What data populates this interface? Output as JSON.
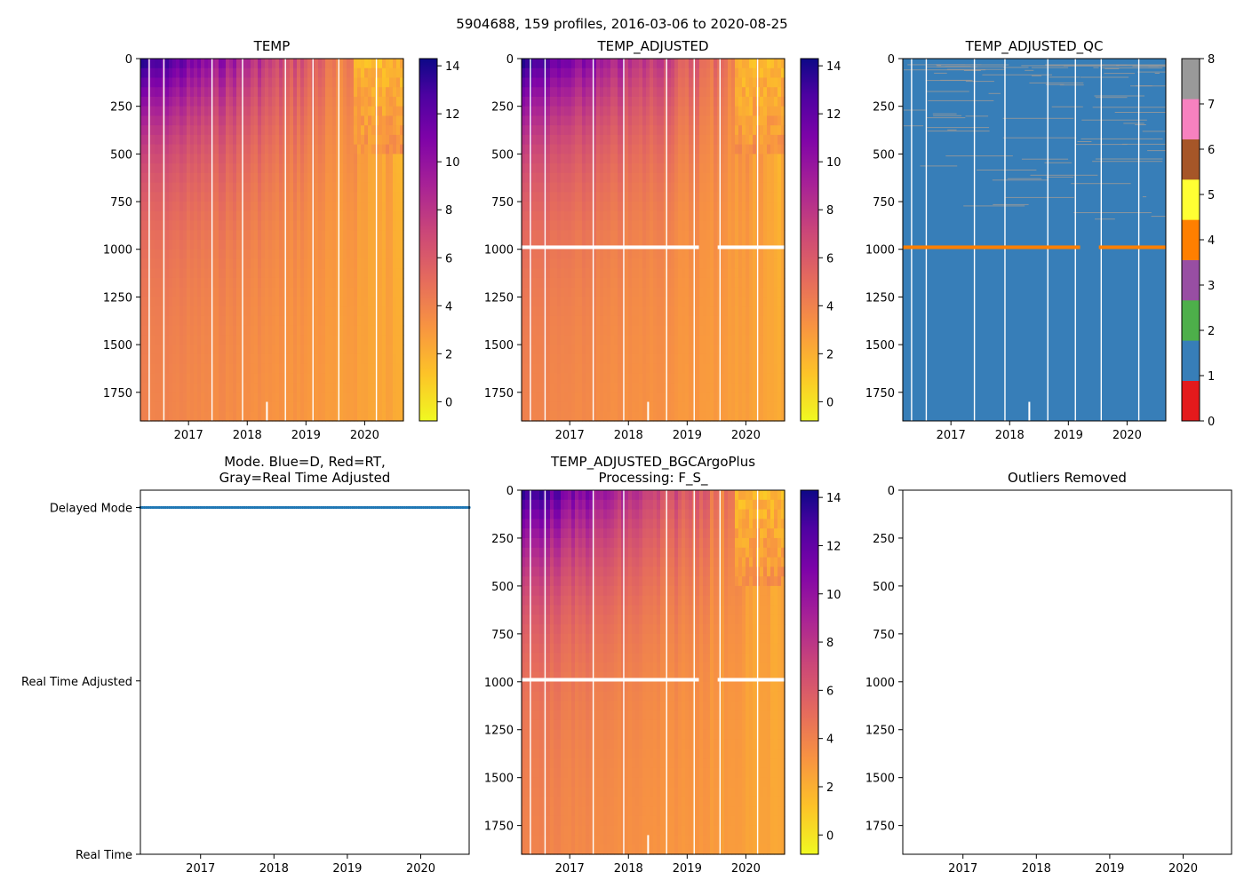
{
  "figure": {
    "suptitle": "5904688, 159 profiles, 2016-03-06 to 2020-08-25"
  },
  "chart_data": [
    {
      "id": "temp",
      "type": "heatmap",
      "title": "TEMP",
      "xlabel": "",
      "ylabel": "",
      "xlim": [
        2016.18,
        2020.66
      ],
      "ylim": [
        1900,
        0
      ],
      "xticks": [
        2017,
        2018,
        2019,
        2020
      ],
      "xtick_labels": [
        "2017",
        "2018",
        "2019",
        "2020"
      ],
      "yticks": [
        0,
        250,
        500,
        750,
        1000,
        1250,
        1500,
        1750
      ],
      "ytick_labels": [
        "0",
        "250",
        "500",
        "750",
        "1000",
        "1250",
        "1500",
        "1750"
      ],
      "colormap": "plasma_r",
      "colorbar": {
        "range": [
          -0.8,
          14.3
        ],
        "ticks": [
          0,
          2,
          4,
          6,
          8,
          10,
          12,
          14
        ],
        "tick_labels": [
          "0",
          "2",
          "4",
          "6",
          "8",
          "10",
          "12",
          "14"
        ]
      },
      "surface_temp_warm_start": 14,
      "surface_temp_end": 1.0,
      "deep_temp_start": 3.6,
      "deep_temp_end": 2.2,
      "gaps_years": [
        2016.33,
        2016.58,
        2017.4,
        2017.92,
        2018.65,
        2019.12,
        2019.56,
        2020.2
      ]
    },
    {
      "id": "temp_adj",
      "type": "heatmap",
      "title": "TEMP_ADJUSTED",
      "xlabel": "",
      "ylabel": "",
      "xlim": [
        2016.18,
        2020.66
      ],
      "ylim": [
        1900,
        0
      ],
      "xticks": [
        2017,
        2018,
        2019,
        2020
      ],
      "xtick_labels": [
        "2017",
        "2018",
        "2019",
        "2020"
      ],
      "yticks": [
        0,
        250,
        500,
        750,
        1000,
        1250,
        1500,
        1750
      ],
      "ytick_labels": [
        "0",
        "250",
        "500",
        "750",
        "1000",
        "1250",
        "1500",
        "1750"
      ],
      "colormap": "plasma_r",
      "colorbar": {
        "range": [
          -0.8,
          14.3
        ],
        "ticks": [
          0,
          2,
          4,
          6,
          8,
          10,
          12,
          14
        ],
        "tick_labels": [
          "0",
          "2",
          "4",
          "6",
          "8",
          "10",
          "12",
          "14"
        ]
      },
      "missing_band_depth": [
        980,
        1000
      ],
      "missing_band_years": [
        [
          2016.18,
          2019.2
        ],
        [
          2019.52,
          2020.66
        ]
      ]
    },
    {
      "id": "temp_adj_qc",
      "type": "heatmap",
      "title": "TEMP_ADJUSTED_QC",
      "xlabel": "",
      "ylabel": "",
      "xlim": [
        2016.18,
        2020.66
      ],
      "ylim": [
        1900,
        0
      ],
      "xticks": [
        2017,
        2018,
        2019,
        2020
      ],
      "xtick_labels": [
        "2017",
        "2018",
        "2019",
        "2020"
      ],
      "yticks": [
        0,
        250,
        500,
        750,
        1000,
        1250,
        1500,
        1750
      ],
      "ytick_labels": [
        "0",
        "250",
        "500",
        "750",
        "1000",
        "1250",
        "1500",
        "1750"
      ],
      "dominant_flag": 1,
      "flag4_band_depth": [
        980,
        1000
      ],
      "flag4_band_years": [
        [
          2016.18,
          2019.2
        ],
        [
          2019.52,
          2020.66
        ]
      ],
      "colorbar": {
        "range": [
          0,
          8
        ],
        "ticks": [
          0,
          1,
          2,
          3,
          4,
          5,
          6,
          7,
          8
        ],
        "tick_labels": [
          "0",
          "1",
          "2",
          "3",
          "4",
          "5",
          "6",
          "7",
          "8"
        ],
        "colors": [
          "#e41a1c",
          "#377eb8",
          "#4daf4a",
          "#984ea3",
          "#ff7f00",
          "#ffff33",
          "#a65628",
          "#f781bf",
          "#999999"
        ]
      }
    },
    {
      "id": "mode",
      "type": "scatter",
      "title": "Mode. Blue=D, Red=RT,",
      "title_line2": "Gray=Real Time Adjusted",
      "xlabel": "",
      "ylabel": "",
      "xlim": [
        2016.18,
        2020.66
      ],
      "ylim": [
        0,
        2.1
      ],
      "xticks": [
        2017,
        2018,
        2019,
        2020
      ],
      "xtick_labels": [
        "2017",
        "2018",
        "2019",
        "2020"
      ],
      "yticks": [
        2,
        1,
        0
      ],
      "ytick_labels": [
        "Delayed Mode",
        "Real Time Adjusted",
        "Real Time"
      ],
      "series": [
        {
          "name": "Delayed Mode",
          "y": 2,
          "color": "#1f77b4",
          "x_start": 2016.18,
          "x_end": 2020.66,
          "count": 159
        }
      ]
    },
    {
      "id": "temp_bgc",
      "type": "heatmap",
      "title": "TEMP_ADJUSTED_BGCArgoPlus",
      "title_line2": "Processing: F_S_",
      "xlabel": "",
      "ylabel": "",
      "xlim": [
        2016.18,
        2020.66
      ],
      "ylim": [
        1900,
        0
      ],
      "xticks": [
        2017,
        2018,
        2019,
        2020
      ],
      "xtick_labels": [
        "2017",
        "2018",
        "2019",
        "2020"
      ],
      "yticks": [
        0,
        250,
        500,
        750,
        1000,
        1250,
        1500,
        1750
      ],
      "ytick_labels": [
        "0",
        "250",
        "500",
        "750",
        "1000",
        "1250",
        "1500",
        "1750"
      ],
      "colormap": "plasma_r",
      "colorbar": {
        "range": [
          -0.8,
          14.3
        ],
        "ticks": [
          0,
          2,
          4,
          6,
          8,
          10,
          12,
          14
        ],
        "tick_labels": [
          "0",
          "2",
          "4",
          "6",
          "8",
          "10",
          "12",
          "14"
        ]
      }
    },
    {
      "id": "outliers",
      "type": "scatter",
      "title": "Outliers Removed",
      "xlabel": "",
      "ylabel": "",
      "xlim": [
        2016.18,
        2020.66
      ],
      "ylim": [
        1900,
        0
      ],
      "xticks": [
        2017,
        2018,
        2019,
        2020
      ],
      "xtick_labels": [
        "2017",
        "2018",
        "2019",
        "2020"
      ],
      "yticks": [
        0,
        250,
        500,
        750,
        1000,
        1250,
        1500,
        1750
      ],
      "ytick_labels": [
        "0",
        "250",
        "500",
        "750",
        "1000",
        "1250",
        "1500",
        "1750"
      ],
      "series": []
    }
  ]
}
